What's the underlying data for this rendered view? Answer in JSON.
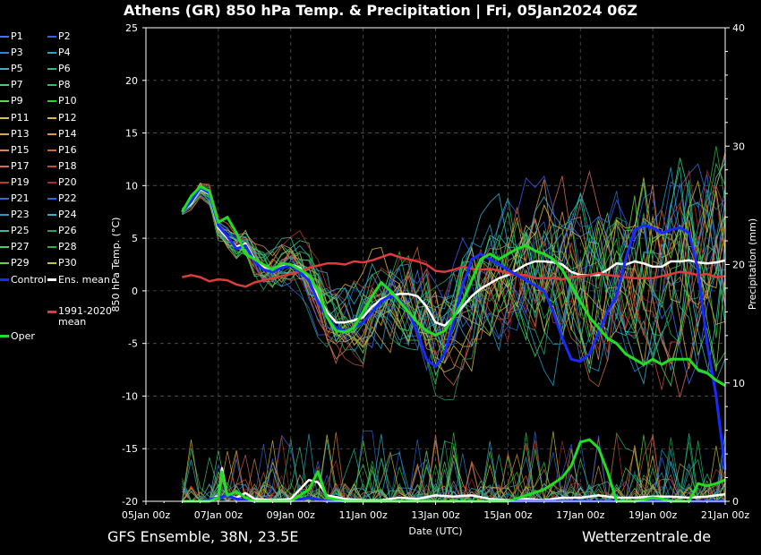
{
  "title": "Athens  (GR)  850 hPa Temp. & Precipitation | Fri, 05Jan2024 06Z",
  "footer": {
    "model": "GFS Ensemble, 38N, 23.5E",
    "site": "Wetterzentrale.de"
  },
  "legend": [
    {
      "label": "P1",
      "color": "#4a6cff"
    },
    {
      "label": "P2",
      "color": "#3f5bf0"
    },
    {
      "label": "P3",
      "color": "#2f86d6"
    },
    {
      "label": "P4",
      "color": "#2aa0c8"
    },
    {
      "label": "P5",
      "color": "#3ab0c0"
    },
    {
      "label": "P6",
      "color": "#2fb88a"
    },
    {
      "label": "P7",
      "color": "#3fd27a"
    },
    {
      "label": "P8",
      "color": "#2fc25a"
    },
    {
      "label": "P9",
      "color": "#5bd84a"
    },
    {
      "label": "P10",
      "color": "#2ed02e"
    },
    {
      "label": "P11",
      "color": "#d8c24a"
    },
    {
      "label": "P12",
      "color": "#d8b84a"
    },
    {
      "label": "P13",
      "color": "#d8a84a"
    },
    {
      "label": "P14",
      "color": "#d89a4a"
    },
    {
      "label": "P15",
      "color": "#d8844a"
    },
    {
      "label": "P16",
      "color": "#c86a3a"
    },
    {
      "label": "P17",
      "color": "#d86a5a"
    },
    {
      "label": "P18",
      "color": "#c84a3a"
    },
    {
      "label": "P19",
      "color": "#b83a2a"
    },
    {
      "label": "P20",
      "color": "#a82a2a"
    },
    {
      "label": "P21",
      "color": "#3a6ac8"
    },
    {
      "label": "P22",
      "color": "#2a6ad8"
    },
    {
      "label": "P23",
      "color": "#2a9ac8"
    },
    {
      "label": "P24",
      "color": "#3ab0d0"
    },
    {
      "label": "P25",
      "color": "#2ac0a0"
    },
    {
      "label": "P26",
      "color": "#2aa070"
    },
    {
      "label": "P27",
      "color": "#4ad06a"
    },
    {
      "label": "P28",
      "color": "#2ab04a"
    },
    {
      "label": "P29",
      "color": "#6ad04a"
    },
    {
      "label": "P30",
      "color": "#c8c040"
    },
    {
      "label": "Control",
      "color": "#1a2aff"
    },
    {
      "label": "Ens. mean",
      "color": "#ffffff"
    },
    {
      "label": "1991-2020 mean",
      "color": "#e03a3a"
    },
    {
      "label": "Oper",
      "color": "#22dd22"
    }
  ],
  "chart_data": {
    "type": "line",
    "xlabel": "Date (UTC)",
    "ylabel": "850 hPa Temp. (°C)",
    "y2label": "Precipitation (mm)",
    "ylim": [
      -20,
      25
    ],
    "y2lim": [
      0,
      40
    ],
    "xlim": [
      0,
      16
    ],
    "yticks": [
      25,
      20,
      15,
      10,
      5,
      0,
      -5,
      -10,
      -15,
      -20
    ],
    "y2ticks": [
      40,
      30,
      20,
      10,
      0
    ],
    "xticks": [
      {
        "x": 0,
        "label": "05Jan 00z"
      },
      {
        "x": 2,
        "label": "07Jan 00z"
      },
      {
        "x": 4,
        "label": "09Jan 00z"
      },
      {
        "x": 6,
        "label": "11Jan 00z"
      },
      {
        "x": 8,
        "label": "13Jan 00z"
      },
      {
        "x": 10,
        "label": "15Jan 00z"
      },
      {
        "x": 12,
        "label": "17Jan 00z"
      },
      {
        "x": 14,
        "label": "19Jan 00z"
      },
      {
        "x": 16,
        "label": "21Jan 00z"
      }
    ],
    "grid": true,
    "legend_position": "left",
    "series": [
      {
        "name": "Ens. mean",
        "color": "#ffffff",
        "width": 2.5,
        "x": [
          1,
          1.25,
          1.5,
          1.75,
          2,
          2.25,
          2.5,
          2.75,
          3,
          3.25,
          3.5,
          3.75,
          4,
          4.25,
          4.5,
          4.75,
          5,
          5.25,
          5.5,
          5.75,
          6,
          6.25,
          6.5,
          6.75,
          7,
          7.25,
          7.5,
          7.75,
          8,
          8.25,
          8.5,
          8.75,
          9,
          9.25,
          9.5,
          9.75,
          10,
          10.25,
          10.5,
          10.75,
          11,
          11.25,
          11.5,
          11.75,
          12,
          12.25,
          12.5,
          12.75,
          13,
          13.25,
          13.5,
          13.75,
          14,
          14.25,
          14.5,
          14.75,
          15,
          15.25,
          15.5,
          15.75,
          16
        ],
        "y": [
          7.5,
          8.3,
          9.7,
          9.2,
          6.0,
          5.0,
          4.2,
          4.5,
          3.0,
          2.3,
          2.0,
          2.3,
          2.5,
          2.2,
          1.0,
          -0.5,
          -2.0,
          -3.0,
          -3.0,
          -2.8,
          -2.5,
          -1.5,
          -0.8,
          -0.5,
          -0.3,
          -0.3,
          -0.5,
          -1.5,
          -3.0,
          -3.3,
          -2.5,
          -1.5,
          -0.5,
          0.2,
          0.7,
          1.2,
          1.5,
          2.0,
          2.5,
          2.8,
          2.8,
          2.7,
          2.5,
          1.8,
          1.5,
          1.5,
          1.5,
          2.0,
          2.6,
          2.5,
          2.8,
          2.6,
          2.3,
          2.3,
          2.8,
          2.8,
          2.9,
          2.7,
          2.6,
          2.7,
          2.9
        ]
      },
      {
        "name": "1991-2020 mean",
        "color": "#e03a3a",
        "width": 2.5,
        "x": [
          1,
          1.25,
          1.5,
          1.75,
          2,
          2.25,
          2.5,
          2.75,
          3,
          3.25,
          3.5,
          3.75,
          4,
          4.25,
          4.5,
          4.75,
          5,
          5.25,
          5.5,
          5.75,
          6,
          6.25,
          6.5,
          6.75,
          7,
          7.25,
          7.5,
          7.75,
          8,
          8.25,
          8.5,
          8.75,
          9,
          9.25,
          9.5,
          9.75,
          10,
          10.25,
          10.5,
          10.75,
          11,
          11.25,
          11.5,
          11.75,
          12,
          12.25,
          12.5,
          12.75,
          13,
          13.25,
          13.5,
          13.75,
          14,
          14.25,
          14.5,
          14.75,
          15,
          15.25,
          15.5,
          15.75,
          16
        ],
        "y": [
          1.3,
          1.5,
          1.3,
          0.9,
          1.1,
          1.0,
          0.6,
          0.4,
          0.8,
          1.0,
          1.2,
          1.4,
          1.6,
          1.8,
          2.2,
          2.4,
          2.6,
          2.6,
          2.5,
          2.8,
          2.7,
          2.9,
          3.2,
          3.5,
          3.2,
          3.0,
          2.8,
          2.5,
          1.9,
          1.8,
          2.0,
          2.3,
          2.1,
          2.0,
          2.1,
          1.9,
          1.7,
          1.5,
          1.5,
          1.2,
          1.2,
          1.2,
          1.1,
          1.3,
          1.4,
          1.5,
          1.7,
          1.5,
          1.4,
          1.3,
          1.2,
          1.2,
          1.2,
          1.4,
          1.6,
          1.8,
          1.7,
          1.5,
          1.6,
          1.3,
          1.4
        ]
      },
      {
        "name": "Control",
        "color": "#1a2aff",
        "width": 3,
        "x": [
          1,
          1.25,
          1.5,
          1.75,
          2,
          2.25,
          2.5,
          2.75,
          3,
          3.25,
          3.5,
          3.75,
          4,
          4.25,
          4.5,
          4.75,
          5,
          5.25,
          5.5,
          5.75,
          6,
          6.25,
          6.5,
          6.75,
          7,
          7.25,
          7.5,
          7.75,
          8,
          8.25,
          8.5,
          8.75,
          9,
          9.25,
          9.5,
          9.75,
          10,
          10.25,
          10.5,
          10.75,
          11,
          11.25,
          11.5,
          11.75,
          12,
          12.25,
          12.5,
          12.75,
          13,
          13.25,
          13.5,
          13.75,
          14,
          14.25,
          14.5,
          14.75,
          15,
          15.25,
          15.5,
          15.75,
          16
        ],
        "y": [
          7.5,
          8.5,
          9.8,
          9.3,
          6.2,
          5.2,
          4.0,
          4.3,
          2.8,
          2.0,
          1.8,
          2.2,
          2.4,
          1.8,
          1.0,
          -1.0,
          -2.5,
          -3.5,
          -3.8,
          -3.5,
          -3.0,
          -2.0,
          -1.0,
          -0.5,
          -0.8,
          -2.0,
          -4.0,
          -6.5,
          -7.2,
          -6.0,
          -3.0,
          0.5,
          3.0,
          3.5,
          3.0,
          2.5,
          2.0,
          1.5,
          1.0,
          0.5,
          0.0,
          -2.0,
          -4.5,
          -6.5,
          -6.7,
          -6.0,
          -4.0,
          -2.0,
          -0.5,
          3.0,
          5.8,
          6.2,
          6.0,
          5.5,
          5.8,
          6.0,
          5.5,
          2.0,
          -5.0,
          -10.0,
          -17.0
        ]
      },
      {
        "name": "Oper",
        "color": "#22dd22",
        "width": 3,
        "x": [
          1,
          1.25,
          1.5,
          1.75,
          2,
          2.25,
          2.5,
          2.75,
          3,
          3.25,
          3.5,
          3.75,
          4,
          4.25,
          4.5,
          4.75,
          5,
          5.25,
          5.5,
          5.75,
          6,
          6.25,
          6.5,
          6.75,
          7,
          7.25,
          7.5,
          7.75,
          8,
          8.25,
          8.5,
          8.75,
          9,
          9.25,
          9.5,
          9.75,
          10,
          10.25,
          10.5,
          10.75,
          11,
          11.25,
          11.5,
          11.75,
          12,
          12.25,
          12.5,
          12.75,
          13,
          13.25,
          13.5,
          13.75,
          14,
          14.25,
          14.5,
          14.75,
          15,
          15.25,
          15.5,
          15.75,
          16
        ],
        "y": [
          7.5,
          9.0,
          9.9,
          9.5,
          6.5,
          7.0,
          5.5,
          3.5,
          3.0,
          2.5,
          2.0,
          2.6,
          2.5,
          2.0,
          1.5,
          0.0,
          -2.5,
          -3.8,
          -3.9,
          -3.5,
          -2.0,
          -0.5,
          0.8,
          0.0,
          -1.0,
          -2.0,
          -3.0,
          -3.8,
          -4.2,
          -3.8,
          -2.5,
          -1.0,
          1.0,
          3.0,
          3.5,
          3.0,
          3.5,
          4.0,
          4.3,
          3.8,
          3.5,
          3.0,
          2.0,
          0.5,
          -1.0,
          -2.5,
          -3.5,
          -4.5,
          -5.0,
          -6.0,
          -6.5,
          -7.0,
          -6.5,
          -7.0,
          -6.5,
          -6.5,
          -6.5,
          -7.5,
          -7.8,
          -8.5,
          -9.0
        ]
      }
    ],
    "precip_series": [
      {
        "name": "Ens. mean",
        "color": "#ffffff",
        "width": 2.5,
        "x": [
          1,
          1.25,
          1.5,
          1.75,
          2,
          2.1,
          2.25,
          2.5,
          2.75,
          3,
          3.5,
          4,
          4.25,
          4.5,
          4.75,
          5,
          5.5,
          6,
          6.5,
          7,
          7.5,
          8,
          8.5,
          9,
          9.5,
          10,
          10.5,
          11,
          11.5,
          12,
          12.5,
          13,
          13.5,
          14,
          14.5,
          15,
          15.5,
          16
        ],
        "y": [
          0,
          0,
          0,
          0,
          0.5,
          2.8,
          0.5,
          0.3,
          0.7,
          0.2,
          0.1,
          0.2,
          1.0,
          1.8,
          1.6,
          0.5,
          0.2,
          0.1,
          0.1,
          0.3,
          0.2,
          0.5,
          0.4,
          0.5,
          0.2,
          0.1,
          0.2,
          0.1,
          0.3,
          0.3,
          0.5,
          0.3,
          0.3,
          0.4,
          0.4,
          0.3,
          0.4,
          0.6
        ]
      },
      {
        "name": "Control",
        "color": "#1a2aff",
        "width": 3,
        "x": [
          1,
          1.5,
          2,
          2.25,
          2.5,
          3,
          4,
          4.5,
          5,
          6,
          7,
          8,
          9,
          10,
          11,
          12,
          13,
          14,
          15,
          15.75,
          16
        ],
        "y": [
          0,
          0,
          0.3,
          0.5,
          0.2,
          0,
          0,
          0.3,
          0,
          0,
          0,
          0,
          0,
          0,
          0,
          0,
          0,
          0,
          0,
          0,
          0
        ]
      },
      {
        "name": "Oper",
        "color": "#22dd22",
        "width": 3,
        "x": [
          1,
          1.5,
          1.75,
          2,
          2.1,
          2.25,
          2.5,
          2.75,
          3,
          3.5,
          4,
          4.25,
          4.5,
          4.75,
          5,
          5.5,
          6,
          7,
          8,
          9,
          10,
          10.5,
          11,
          11.5,
          11.75,
          12,
          12.25,
          12.5,
          12.75,
          13,
          13.5,
          14,
          14.25,
          14.5,
          15,
          15.25,
          15.5,
          15.75,
          16
        ],
        "y": [
          0,
          0,
          0,
          0.3,
          2.5,
          0.5,
          0.8,
          0.3,
          0,
          0,
          0,
          0.5,
          1.0,
          2.5,
          0.3,
          0,
          0,
          0,
          0,
          0,
          0,
          0.5,
          1.0,
          2.0,
          3.0,
          5.0,
          5.2,
          4.5,
          2.5,
          0,
          0,
          0.3,
          0.2,
          0,
          0,
          1.5,
          1.3,
          1.5,
          1.8
        ]
      }
    ]
  }
}
